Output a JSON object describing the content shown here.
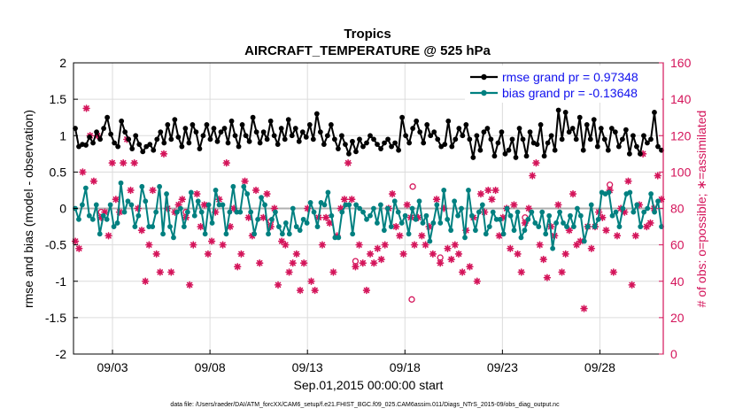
{
  "chart_data": {
    "type": "line",
    "title": "Tropics",
    "subtitle": "AIRCRAFT_TEMPERATURE @ 525 hPa",
    "xlabel": "Sep.01,2015 00:00:00 start",
    "ylabel": "rmse and bias (model - observation)",
    "y2label": "# of obs: o=possible; ∗=assimilated",
    "footer": "data file: /Users/raeder/DAI/ATM_forcXX/CAM6_setup/f.e21.FHIST_BGC.f09_025.CAM6assim.011/Diags_NTrS_2015-09/obs_diag_output.nc",
    "x_range_days": [
      0.5,
      30.75
    ],
    "xticks": [
      {
        "day": 2.5,
        "label": "09/03"
      },
      {
        "day": 7.5,
        "label": "09/08"
      },
      {
        "day": 12.5,
        "label": "09/13"
      },
      {
        "day": 17.5,
        "label": "09/18"
      },
      {
        "day": 22.5,
        "label": "09/23"
      },
      {
        "day": 27.5,
        "label": "09/28"
      }
    ],
    "ylim": [
      -2,
      2
    ],
    "yticks": [
      "-2",
      "-1.5",
      "-1",
      "-0.5",
      "0",
      "0.5",
      "1",
      "1.5",
      "2"
    ],
    "y2lim": [
      0,
      160
    ],
    "y2ticks": [
      "0",
      "20",
      "40",
      "60",
      "80",
      "100",
      "120",
      "140",
      "160"
    ],
    "legend_position": "top-right",
    "colors": {
      "rmse": "#000000",
      "bias": "#008080",
      "obs": "#d4145a",
      "zero_line": "#b0b0b0",
      "grid": "#dcdcdc"
    },
    "series": [
      {
        "name": "rmse grand pr = 0.97348",
        "values": [
          1.1,
          0.85,
          0.88,
          0.87,
          0.98,
          0.9,
          1.05,
          0.95,
          1.1,
          1.25,
          1.02,
          0.9,
          0.85,
          1.2,
          1.05,
          0.95,
          0.82,
          1.0,
          0.88,
          0.78,
          0.85,
          0.88,
          0.8,
          0.95,
          1.05,
          0.9,
          1.15,
          0.95,
          1.22,
          0.98,
          0.85,
          1.1,
          0.9,
          1.15,
          1.05,
          0.82,
          1.0,
          1.15,
          0.95,
          1.1,
          0.92,
          1.05,
          1.1,
          0.9,
          1.2,
          1.0,
          0.85,
          1.15,
          1.0,
          0.92,
          1.25,
          1.05,
          0.9,
          1.05,
          0.95,
          1.2,
          1.0,
          0.88,
          1.1,
          0.95,
          1.22,
          1.0,
          1.1,
          0.92,
          1.05,
          0.98,
          1.15,
          0.95,
          1.3,
          1.05,
          0.88,
          1.0,
          1.15,
          0.95,
          0.82,
          1.0,
          0.88,
          0.75,
          0.92,
          0.78,
          0.95,
          0.85,
          0.9,
          1.0,
          0.95,
          0.88,
          0.82,
          0.9,
          0.95,
          0.85,
          0.9,
          0.8,
          1.25,
          1.0,
          0.9,
          1.1,
          1.2,
          1.05,
          0.9,
          1.15,
          1.0,
          1.05,
          0.95,
          0.85,
          0.88,
          1.2,
          0.85,
          0.95,
          1.1,
          1.0,
          1.15,
          0.95,
          0.7,
          1.0,
          0.8,
          1.05,
          1.1,
          0.95,
          0.72,
          0.9,
          1.05,
          0.75,
          0.8,
          0.95,
          0.7,
          1.1,
          0.95,
          0.72,
          1.05,
          0.9,
          0.88,
          1.15,
          0.72,
          0.9,
          1.0,
          0.8,
          1.35,
          0.95,
          1.32,
          1.05,
          1.1,
          0.95,
          1.25,
          0.8,
          1.15,
          0.95,
          1.22,
          0.85,
          1.1,
          0.95,
          0.8,
          1.1,
          1.05,
          0.85,
          0.95,
          1.08,
          0.75,
          1.0,
          0.85,
          0.75,
          1.0,
          0.9,
          0.95,
          1.32,
          0.85,
          0.8
        ]
      },
      {
        "name": "bias grand pr = -0.13648",
        "values": [
          0.0,
          -0.15,
          0.05,
          0.28,
          -0.1,
          -0.15,
          0.05,
          -0.35,
          -0.1,
          -0.15,
          0.05,
          -0.25,
          -0.2,
          0.35,
          -0.05,
          0.1,
          0.05,
          -0.25,
          -0.1,
          0.3,
          0.1,
          -0.25,
          -0.25,
          -0.05,
          0.3,
          -0.35,
          0.2,
          -0.25,
          -0.4,
          -0.05,
          0.0,
          -0.25,
          -0.05,
          0.22,
          -0.1,
          0.1,
          -0.05,
          -0.35,
          0.05,
          -0.2,
          0.25,
          0.05,
          0.05,
          -0.35,
          -0.05,
          0.3,
          -0.05,
          -0.05,
          0.3,
          0.2,
          -0.05,
          -0.35,
          -0.15,
          0.15,
          0.05,
          -0.35,
          -0.15,
          -0.05,
          -0.25,
          -0.35,
          -0.2,
          -0.35,
          0.0,
          -0.25,
          -0.3,
          -0.15,
          -0.2,
          0.08,
          -0.05,
          -0.25,
          0.08,
          0.05,
          0.22,
          -0.1,
          -0.4,
          -0.4,
          -0.05,
          0.05,
          0.05,
          -0.35,
          0.05,
          0.0,
          -0.05,
          -0.15,
          -0.1,
          0.0,
          -0.2,
          0.05,
          -0.3,
          0.0,
          -0.25,
          0.1,
          -0.05,
          -0.2,
          -0.1,
          -0.35,
          0.0,
          -0.15,
          0.1,
          -0.2,
          -0.1,
          -0.45,
          -0.2,
          0.05,
          -0.2,
          0.25,
          -0.15,
          -0.3,
          0.1,
          -0.1,
          0.0,
          -0.4,
          0.25,
          -0.1,
          -0.3,
          -0.05,
          0.05,
          -0.35,
          -0.25,
          -0.05,
          -0.15,
          -0.15,
          -0.35,
          0.0,
          -0.1,
          -0.3,
          -0.05,
          -0.4,
          -0.3,
          -0.15,
          -0.05,
          -0.2,
          -0.25,
          -0.05,
          -0.35,
          -0.1,
          -0.55,
          -0.2,
          -0.05,
          -0.2,
          -0.25,
          -0.1,
          -0.25,
          0.0,
          -0.1,
          -0.45,
          -0.25,
          0.05,
          -0.25,
          -0.15,
          0.22,
          0.2,
          0.22,
          -0.1,
          -0.05,
          -0.25,
          0.0,
          0.2,
          0.22,
          -0.05,
          0.05,
          -0.25,
          -0.05,
          0.0,
          0.2,
          -0.05,
          0.1,
          -0.25
        ]
      },
      {
        "name": "obs assimilated",
        "values": [
          62,
          58,
          100,
          135,
          120,
          95,
          120,
          75,
          78,
          65,
          105,
          85,
          78,
          105,
          118,
          90,
          105,
          80,
          68,
          40,
          60,
          90,
          55,
          45,
          110,
          80,
          45,
          78,
          82,
          85,
          75,
          38,
          60,
          88,
          70,
          82,
          55,
          62,
          78,
          85,
          60,
          105,
          70,
          80,
          48,
          55,
          95,
          75,
          65,
          90,
          50,
          75,
          88,
          70,
          80,
          38,
          62,
          60,
          45,
          50,
          55,
          35,
          50,
          80,
          40,
          35,
          75,
          60,
          75,
          72,
          45,
          65,
          80,
          85,
          105,
          85,
          48,
          60,
          50,
          35,
          55,
          50,
          58,
          52,
          60,
          80,
          88,
          70,
          65,
          55,
          82,
          75,
          60,
          75,
          65,
          60,
          70,
          55,
          85,
          50,
          80,
          58,
          52,
          60,
          55,
          45,
          68,
          48,
          75,
          40,
          88,
          78,
          90,
          85,
          90,
          65,
          75,
          80,
          58,
          82,
          55,
          45,
          72,
          80,
          98,
          105,
          60,
          52,
          42,
          70,
          65,
          82,
          45,
          55,
          68,
          88,
          60,
          62,
          25,
          70,
          58,
          70,
          78,
          75,
          68,
          90,
          45,
          65,
          80,
          78,
          95,
          38,
          65,
          82,
          110,
          70,
          72,
          80,
          98,
          85
        ]
      }
    ],
    "obs_possible_extra": [
      {
        "day": 17.9,
        "value": 92
      },
      {
        "day": 17.85,
        "value": 30
      }
    ]
  }
}
